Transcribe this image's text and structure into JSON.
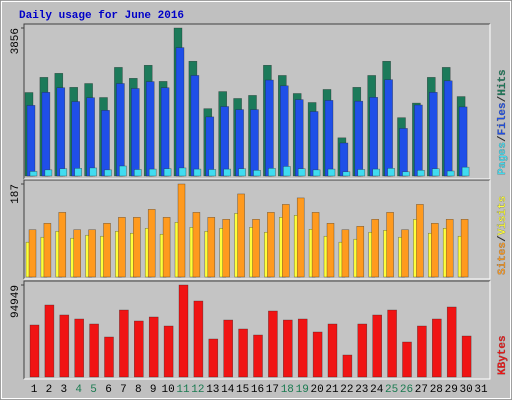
{
  "chart_data": [
    {
      "type": "bar",
      "title": "Daily usage for June 2016",
      "ylim": [
        0,
        3856
      ],
      "yticks": [
        3856
      ],
      "legend_separator": "/",
      "series": [
        {
          "name": "Hits",
          "color": "#1c7a5a",
          "values": [
            2175,
            2570,
            2675,
            2310,
            2410,
            2045,
            2830,
            2545,
            2885,
            2465,
            3856,
            2990,
            1755,
            2200,
            2020,
            2100,
            2885,
            2620,
            2150,
            1915,
            2255,
            995,
            2310,
            2620,
            2990,
            1520,
            1900,
            2570,
            2830,
            2070,
            null
          ]
        },
        {
          "name": "Files",
          "color": "#1f4fe8",
          "values": [
            1840,
            2180,
            2300,
            1940,
            2040,
            1710,
            2410,
            2280,
            2460,
            2300,
            3345,
            2620,
            1540,
            1810,
            1730,
            1730,
            2500,
            2350,
            1990,
            1680,
            1970,
            860,
            1950,
            2050,
            2510,
            1240,
            1850,
            2180,
            2480,
            1800,
            null
          ]
        },
        {
          "name": "Pages",
          "color": "#40dcf0",
          "values": [
            120,
            160,
            190,
            200,
            210,
            160,
            260,
            170,
            180,
            190,
            210,
            180,
            170,
            180,
            190,
            150,
            200,
            250,
            190,
            160,
            180,
            110,
            170,
            180,
            200,
            110,
            150,
            190,
            130,
            230,
            null
          ]
        }
      ]
    },
    {
      "type": "bar",
      "ylim": [
        0,
        187
      ],
      "yticks": [
        187
      ],
      "legend_separator": "/",
      "series": [
        {
          "name": "Visits",
          "color": "#ffff3a",
          "values": [
            70,
            80,
            92,
            78,
            84,
            82,
            92,
            88,
            98,
            86,
            110,
            100,
            92,
            98,
            128,
            100,
            90,
            120,
            124,
            96,
            82,
            70,
            76,
            90,
            94,
            80,
            116,
            88,
            98,
            82,
            null
          ]
        },
        {
          "name": "Sites",
          "color": "#ff9a1e",
          "values": [
            95,
            108,
            130,
            95,
            95,
            108,
            120,
            120,
            136,
            120,
            187,
            130,
            120,
            116,
            167,
            116,
            130,
            146,
            159,
            130,
            108,
            95,
            102,
            116,
            130,
            95,
            146,
            108,
            116,
            116,
            null
          ]
        }
      ]
    },
    {
      "type": "bar",
      "ylim": [
        0,
        94949
      ],
      "yticks": [
        94949
      ],
      "legend_separator": "/",
      "categories": [
        "1",
        "2",
        "3",
        "4",
        "5",
        "6",
        "7",
        "8",
        "9",
        "10",
        "11",
        "12",
        "13",
        "14",
        "15",
        "16",
        "17",
        "18",
        "19",
        "20",
        "21",
        "22",
        "23",
        "24",
        "25",
        "26",
        "27",
        "28",
        "29",
        "30",
        "31"
      ],
      "label_color": "#000000",
      "highlight_color": "#1a7a50",
      "highlight_indices": [
        3,
        4,
        10,
        11,
        17,
        18,
        24,
        25
      ],
      "series": [
        {
          "name": "KBytes",
          "color": "#f01414",
          "values": [
            53660,
            74300,
            64000,
            59860,
            54700,
            41280,
            69140,
            57800,
            61920,
            52630,
            94949,
            78430,
            39220,
            58820,
            49540,
            43340,
            68110,
            58820,
            59860,
            46440,
            54700,
            22700,
            54700,
            63980,
            69140,
            36120,
            52630,
            59860,
            72240,
            42310,
            null
          ]
        }
      ]
    }
  ]
}
